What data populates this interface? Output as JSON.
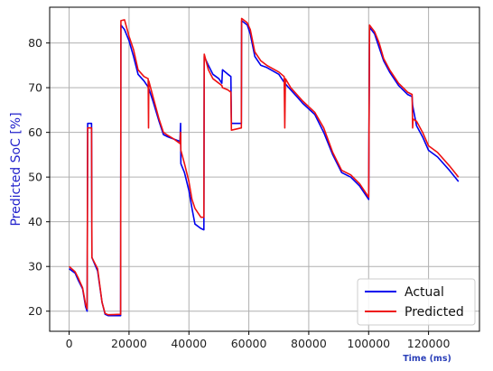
{
  "chart_data": {
    "type": "line",
    "title": "",
    "xlabel": "Time (ms)",
    "ylabel": "Predicted SoC [%]",
    "xlim": [
      -6500,
      137000
    ],
    "ylim": [
      15.5,
      88
    ],
    "xticks": [
      0,
      20000,
      40000,
      60000,
      80000,
      100000,
      120000
    ],
    "xtick_labels": [
      "0",
      "20000",
      "40000",
      "60000",
      "80000",
      "100000",
      "120000"
    ],
    "yticks": [
      20,
      30,
      40,
      50,
      60,
      70,
      80
    ],
    "ytick_labels": [
      "20",
      "30",
      "40",
      "50",
      "60",
      "70",
      "80"
    ],
    "grid": true,
    "legend_position": "lower-right",
    "colors": {
      "actual": "#0000ee",
      "predicted": "#ee1111",
      "ylabel": "#2222cc",
      "xlabel": "#2a3fb8",
      "grid": "#b0b0b0"
    },
    "series": [
      {
        "name": "Actual",
        "color": "#0000ee",
        "points": [
          [
            0,
            29.5
          ],
          [
            2000,
            28.5
          ],
          [
            3000,
            27
          ],
          [
            4500,
            25
          ],
          [
            5500,
            21
          ],
          [
            6000,
            20
          ],
          [
            6200,
            62
          ],
          [
            7500,
            62
          ],
          [
            7600,
            32
          ],
          [
            9500,
            29
          ],
          [
            11000,
            22
          ],
          [
            12000,
            19.3
          ],
          [
            13000,
            19
          ],
          [
            17200,
            19
          ],
          [
            17300,
            84
          ],
          [
            18500,
            83
          ],
          [
            20000,
            80.5
          ],
          [
            21500,
            77
          ],
          [
            23000,
            73
          ],
          [
            25000,
            71.5
          ],
          [
            26500,
            70
          ],
          [
            28000,
            67
          ],
          [
            30000,
            62.5
          ],
          [
            31500,
            59.5
          ],
          [
            33000,
            59
          ],
          [
            35000,
            58.5
          ],
          [
            37000,
            58
          ],
          [
            37200,
            62
          ],
          [
            37300,
            53
          ],
          [
            38500,
            51
          ],
          [
            40000,
            47
          ],
          [
            41000,
            43
          ],
          [
            42000,
            39.5
          ],
          [
            44000,
            38.5
          ],
          [
            45000,
            38.2
          ],
          [
            45100,
            77
          ],
          [
            46500,
            75
          ],
          [
            48000,
            73
          ],
          [
            50000,
            72
          ],
          [
            51000,
            71
          ],
          [
            51200,
            74
          ],
          [
            53000,
            73
          ],
          [
            54000,
            72.5
          ],
          [
            54200,
            62
          ],
          [
            57500,
            62
          ],
          [
            57600,
            85
          ],
          [
            59500,
            84
          ],
          [
            60500,
            82
          ],
          [
            62000,
            77
          ],
          [
            64000,
            75
          ],
          [
            66000,
            74.5
          ],
          [
            70000,
            73
          ],
          [
            72000,
            71
          ],
          [
            74000,
            69.5
          ],
          [
            76000,
            68
          ],
          [
            78000,
            66.5
          ],
          [
            82000,
            64
          ],
          [
            85000,
            60
          ],
          [
            88000,
            55
          ],
          [
            91000,
            51
          ],
          [
            94000,
            50
          ],
          [
            97000,
            48
          ],
          [
            100000,
            45
          ],
          [
            100300,
            83.5
          ],
          [
            102000,
            82
          ],
          [
            103500,
            79
          ],
          [
            105000,
            76
          ],
          [
            107000,
            73.5
          ],
          [
            110000,
            70.5
          ],
          [
            113000,
            68.5
          ],
          [
            114500,
            68
          ],
          [
            114700,
            66
          ],
          [
            116000,
            61.5
          ],
          [
            118000,
            59
          ],
          [
            120000,
            56
          ],
          [
            123000,
            54.5
          ],
          [
            127000,
            51.5
          ],
          [
            130000,
            49
          ]
        ]
      },
      {
        "name": "Predicted",
        "color": "#ee1111",
        "points": [
          [
            0,
            30
          ],
          [
            2000,
            28.8
          ],
          [
            3000,
            27.5
          ],
          [
            4500,
            25.2
          ],
          [
            5500,
            21.5
          ],
          [
            6000,
            20.5
          ],
          [
            6200,
            61
          ],
          [
            7500,
            61
          ],
          [
            7600,
            32
          ],
          [
            9500,
            29.5
          ],
          [
            11000,
            22
          ],
          [
            12000,
            19.5
          ],
          [
            13000,
            19.2
          ],
          [
            17200,
            19.3
          ],
          [
            17300,
            85
          ],
          [
            18500,
            85.2
          ],
          [
            20000,
            81.5
          ],
          [
            21500,
            78.5
          ],
          [
            23000,
            74
          ],
          [
            25000,
            72.5
          ],
          [
            26400,
            72
          ],
          [
            26500,
            61
          ],
          [
            26600,
            71.5
          ],
          [
            28000,
            68
          ],
          [
            30000,
            63
          ],
          [
            31500,
            60
          ],
          [
            33000,
            59.3
          ],
          [
            35000,
            58.5
          ],
          [
            37000,
            57.5
          ],
          [
            37200,
            60
          ],
          [
            37300,
            56
          ],
          [
            38500,
            53
          ],
          [
            40000,
            49
          ],
          [
            41000,
            45
          ],
          [
            42000,
            43
          ],
          [
            44000,
            41
          ],
          [
            45000,
            41
          ],
          [
            45100,
            77.5
          ],
          [
            46500,
            74
          ],
          [
            48000,
            72
          ],
          [
            50000,
            71
          ],
          [
            51000,
            70.5
          ],
          [
            51200,
            70
          ],
          [
            53000,
            69.5
          ],
          [
            54000,
            69
          ],
          [
            54200,
            60.5
          ],
          [
            57500,
            61
          ],
          [
            57600,
            85.5
          ],
          [
            59500,
            84.5
          ],
          [
            60500,
            83
          ],
          [
            62000,
            78
          ],
          [
            64000,
            76
          ],
          [
            66000,
            75
          ],
          [
            70000,
            73.5
          ],
          [
            71800,
            72.5
          ],
          [
            72000,
            61
          ],
          [
            72200,
            72
          ],
          [
            74000,
            70
          ],
          [
            76000,
            68.5
          ],
          [
            78000,
            67
          ],
          [
            82000,
            64.5
          ],
          [
            85000,
            61
          ],
          [
            88000,
            55.5
          ],
          [
            91000,
            51.5
          ],
          [
            94000,
            50.5
          ],
          [
            97000,
            48.5
          ],
          [
            100000,
            45.5
          ],
          [
            100300,
            84
          ],
          [
            102000,
            82.5
          ],
          [
            103500,
            80
          ],
          [
            105000,
            76.5
          ],
          [
            107000,
            74
          ],
          [
            110000,
            71
          ],
          [
            113000,
            69
          ],
          [
            114500,
            68.5
          ],
          [
            114700,
            61
          ],
          [
            114800,
            63
          ],
          [
            116000,
            62.5
          ],
          [
            118000,
            60
          ],
          [
            120000,
            57
          ],
          [
            123000,
            55.5
          ],
          [
            127000,
            52.5
          ],
          [
            130000,
            50
          ]
        ]
      }
    ]
  }
}
